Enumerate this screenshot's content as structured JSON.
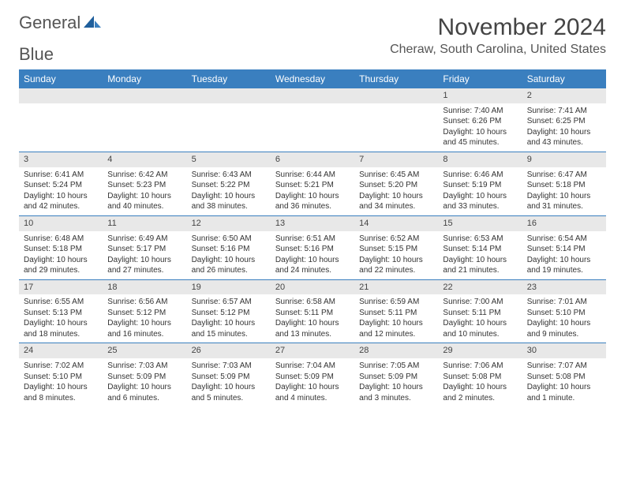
{
  "brand": {
    "word1": "General",
    "word2": "Blue"
  },
  "title": "November 2024",
  "location": "Cheraw, South Carolina, United States",
  "colors": {
    "header_bg": "#3a7fbf",
    "header_fg": "#ffffff",
    "daynum_bg": "#e8e8e8",
    "text": "#333333",
    "rule": "#3a7fbf"
  },
  "daysOfWeek": [
    "Sunday",
    "Monday",
    "Tuesday",
    "Wednesday",
    "Thursday",
    "Friday",
    "Saturday"
  ],
  "weeks": [
    [
      null,
      null,
      null,
      null,
      null,
      {
        "n": "1",
        "sunrise": "Sunrise: 7:40 AM",
        "sunset": "Sunset: 6:26 PM",
        "daylight": "Daylight: 10 hours and 45 minutes."
      },
      {
        "n": "2",
        "sunrise": "Sunrise: 7:41 AM",
        "sunset": "Sunset: 6:25 PM",
        "daylight": "Daylight: 10 hours and 43 minutes."
      }
    ],
    [
      {
        "n": "3",
        "sunrise": "Sunrise: 6:41 AM",
        "sunset": "Sunset: 5:24 PM",
        "daylight": "Daylight: 10 hours and 42 minutes."
      },
      {
        "n": "4",
        "sunrise": "Sunrise: 6:42 AM",
        "sunset": "Sunset: 5:23 PM",
        "daylight": "Daylight: 10 hours and 40 minutes."
      },
      {
        "n": "5",
        "sunrise": "Sunrise: 6:43 AM",
        "sunset": "Sunset: 5:22 PM",
        "daylight": "Daylight: 10 hours and 38 minutes."
      },
      {
        "n": "6",
        "sunrise": "Sunrise: 6:44 AM",
        "sunset": "Sunset: 5:21 PM",
        "daylight": "Daylight: 10 hours and 36 minutes."
      },
      {
        "n": "7",
        "sunrise": "Sunrise: 6:45 AM",
        "sunset": "Sunset: 5:20 PM",
        "daylight": "Daylight: 10 hours and 34 minutes."
      },
      {
        "n": "8",
        "sunrise": "Sunrise: 6:46 AM",
        "sunset": "Sunset: 5:19 PM",
        "daylight": "Daylight: 10 hours and 33 minutes."
      },
      {
        "n": "9",
        "sunrise": "Sunrise: 6:47 AM",
        "sunset": "Sunset: 5:18 PM",
        "daylight": "Daylight: 10 hours and 31 minutes."
      }
    ],
    [
      {
        "n": "10",
        "sunrise": "Sunrise: 6:48 AM",
        "sunset": "Sunset: 5:18 PM",
        "daylight": "Daylight: 10 hours and 29 minutes."
      },
      {
        "n": "11",
        "sunrise": "Sunrise: 6:49 AM",
        "sunset": "Sunset: 5:17 PM",
        "daylight": "Daylight: 10 hours and 27 minutes."
      },
      {
        "n": "12",
        "sunrise": "Sunrise: 6:50 AM",
        "sunset": "Sunset: 5:16 PM",
        "daylight": "Daylight: 10 hours and 26 minutes."
      },
      {
        "n": "13",
        "sunrise": "Sunrise: 6:51 AM",
        "sunset": "Sunset: 5:16 PM",
        "daylight": "Daylight: 10 hours and 24 minutes."
      },
      {
        "n": "14",
        "sunrise": "Sunrise: 6:52 AM",
        "sunset": "Sunset: 5:15 PM",
        "daylight": "Daylight: 10 hours and 22 minutes."
      },
      {
        "n": "15",
        "sunrise": "Sunrise: 6:53 AM",
        "sunset": "Sunset: 5:14 PM",
        "daylight": "Daylight: 10 hours and 21 minutes."
      },
      {
        "n": "16",
        "sunrise": "Sunrise: 6:54 AM",
        "sunset": "Sunset: 5:14 PM",
        "daylight": "Daylight: 10 hours and 19 minutes."
      }
    ],
    [
      {
        "n": "17",
        "sunrise": "Sunrise: 6:55 AM",
        "sunset": "Sunset: 5:13 PM",
        "daylight": "Daylight: 10 hours and 18 minutes."
      },
      {
        "n": "18",
        "sunrise": "Sunrise: 6:56 AM",
        "sunset": "Sunset: 5:12 PM",
        "daylight": "Daylight: 10 hours and 16 minutes."
      },
      {
        "n": "19",
        "sunrise": "Sunrise: 6:57 AM",
        "sunset": "Sunset: 5:12 PM",
        "daylight": "Daylight: 10 hours and 15 minutes."
      },
      {
        "n": "20",
        "sunrise": "Sunrise: 6:58 AM",
        "sunset": "Sunset: 5:11 PM",
        "daylight": "Daylight: 10 hours and 13 minutes."
      },
      {
        "n": "21",
        "sunrise": "Sunrise: 6:59 AM",
        "sunset": "Sunset: 5:11 PM",
        "daylight": "Daylight: 10 hours and 12 minutes."
      },
      {
        "n": "22",
        "sunrise": "Sunrise: 7:00 AM",
        "sunset": "Sunset: 5:11 PM",
        "daylight": "Daylight: 10 hours and 10 minutes."
      },
      {
        "n": "23",
        "sunrise": "Sunrise: 7:01 AM",
        "sunset": "Sunset: 5:10 PM",
        "daylight": "Daylight: 10 hours and 9 minutes."
      }
    ],
    [
      {
        "n": "24",
        "sunrise": "Sunrise: 7:02 AM",
        "sunset": "Sunset: 5:10 PM",
        "daylight": "Daylight: 10 hours and 8 minutes."
      },
      {
        "n": "25",
        "sunrise": "Sunrise: 7:03 AM",
        "sunset": "Sunset: 5:09 PM",
        "daylight": "Daylight: 10 hours and 6 minutes."
      },
      {
        "n": "26",
        "sunrise": "Sunrise: 7:03 AM",
        "sunset": "Sunset: 5:09 PM",
        "daylight": "Daylight: 10 hours and 5 minutes."
      },
      {
        "n": "27",
        "sunrise": "Sunrise: 7:04 AM",
        "sunset": "Sunset: 5:09 PM",
        "daylight": "Daylight: 10 hours and 4 minutes."
      },
      {
        "n": "28",
        "sunrise": "Sunrise: 7:05 AM",
        "sunset": "Sunset: 5:09 PM",
        "daylight": "Daylight: 10 hours and 3 minutes."
      },
      {
        "n": "29",
        "sunrise": "Sunrise: 7:06 AM",
        "sunset": "Sunset: 5:08 PM",
        "daylight": "Daylight: 10 hours and 2 minutes."
      },
      {
        "n": "30",
        "sunrise": "Sunrise: 7:07 AM",
        "sunset": "Sunset: 5:08 PM",
        "daylight": "Daylight: 10 hours and 1 minute."
      }
    ]
  ]
}
